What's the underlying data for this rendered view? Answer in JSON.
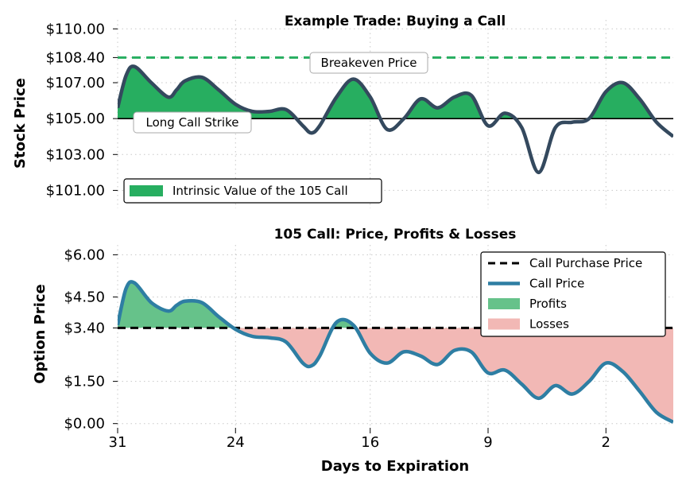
{
  "chart_data": [
    {
      "type": "area",
      "title": "Example Trade: Buying a Call",
      "xlabel": "",
      "ylabel": "Stock Price",
      "ylim": [
        100,
        110.5
      ],
      "xlim": [
        31,
        -2
      ],
      "yticks": [
        {
          "value": 110.0,
          "label": "$110.00"
        },
        {
          "value": 108.4,
          "label": "$108.40"
        },
        {
          "value": 107.0,
          "label": "$107.00"
        },
        {
          "value": 105.0,
          "label": "$105.00"
        },
        {
          "value": 103.0,
          "label": "$103.00"
        },
        {
          "value": 101.0,
          "label": "$101.00"
        }
      ],
      "x": [
        31,
        30.5,
        30,
        29,
        28,
        27.5,
        27,
        26,
        25,
        24,
        23,
        22,
        21,
        20,
        19.5,
        19,
        18,
        17,
        16,
        15,
        14,
        13,
        12,
        11,
        10,
        9,
        8,
        7,
        6,
        5,
        4,
        3,
        2,
        1,
        0,
        -1,
        -2
      ],
      "series": [
        {
          "name": "",
          "values": [
            105.6,
            107.4,
            107.9,
            107.0,
            106.2,
            106.6,
            107.1,
            107.3,
            106.6,
            105.8,
            105.4,
            105.4,
            105.5,
            104.6,
            104.2,
            104.6,
            106.2,
            107.2,
            106.2,
            104.4,
            105.0,
            106.1,
            105.6,
            106.2,
            106.3,
            104.6,
            105.3,
            104.5,
            102.0,
            104.5,
            104.8,
            105.0,
            106.5,
            107.0,
            106.1,
            104.8,
            104.0
          ]
        }
      ],
      "strike": {
        "value": 105.0,
        "label": "Long Call Strike",
        "color": "#000000"
      },
      "breakeven": {
        "value": 108.4,
        "label": "Breakeven Price",
        "color": "#27ae60"
      },
      "fill_label": "Intrinsic Value of the 105 Call",
      "colors": {
        "line": "#34495e",
        "fill": "#27ae60"
      },
      "legend_position": "lower-left",
      "grid": true
    },
    {
      "type": "area",
      "title": "105 Call: Price, Profits & Losses",
      "xlabel": "Days to Expiration",
      "ylabel": "Option Price",
      "ylim": [
        -0.15,
        6.35
      ],
      "xlim": [
        31,
        -2
      ],
      "yticks": [
        {
          "value": 6.0,
          "label": "$6.00"
        },
        {
          "value": 4.5,
          "label": "$4.50"
        },
        {
          "value": 3.4,
          "label": "$3.40"
        },
        {
          "value": 1.5,
          "label": "$1.50"
        },
        {
          "value": 0.0,
          "label": "$0.00"
        }
      ],
      "xticks": [
        {
          "value": 31,
          "label": "31"
        },
        {
          "value": 24,
          "label": "24"
        },
        {
          "value": 16,
          "label": "16"
        },
        {
          "value": 9,
          "label": "9"
        },
        {
          "value": 2,
          "label": "2"
        }
      ],
      "x": [
        31,
        30.5,
        30,
        29,
        28,
        27.5,
        27,
        26,
        25,
        24,
        23,
        22,
        21,
        20,
        19.5,
        19,
        18,
        17,
        16,
        15,
        14,
        13,
        12,
        11,
        10,
        9,
        8,
        7,
        6,
        5,
        4,
        3,
        2,
        1,
        0,
        -1,
        -2
      ],
      "series": [
        {
          "name": "Call Price",
          "values": [
            3.5,
            4.8,
            5.0,
            4.3,
            4.0,
            4.2,
            4.35,
            4.3,
            3.8,
            3.35,
            3.1,
            3.05,
            2.9,
            2.15,
            2.05,
            2.4,
            3.6,
            3.5,
            2.5,
            2.15,
            2.55,
            2.4,
            2.1,
            2.6,
            2.55,
            1.8,
            1.9,
            1.4,
            0.9,
            1.35,
            1.05,
            1.5,
            2.15,
            1.85,
            1.15,
            0.4,
            0.05
          ]
        }
      ],
      "purchase_price": {
        "value": 3.4,
        "name": "Call Purchase Price"
      },
      "legend": [
        {
          "label": "Call Purchase Price",
          "kind": "dash",
          "color": "#000000"
        },
        {
          "label": "Call Price",
          "kind": "line",
          "color": "#2e7ea3"
        },
        {
          "label": "Profits",
          "kind": "patch",
          "color": "#66c28a"
        },
        {
          "label": "Losses",
          "kind": "patch",
          "color": "#f2b8b5"
        }
      ],
      "legend_position": "upper-right",
      "grid": true
    }
  ]
}
